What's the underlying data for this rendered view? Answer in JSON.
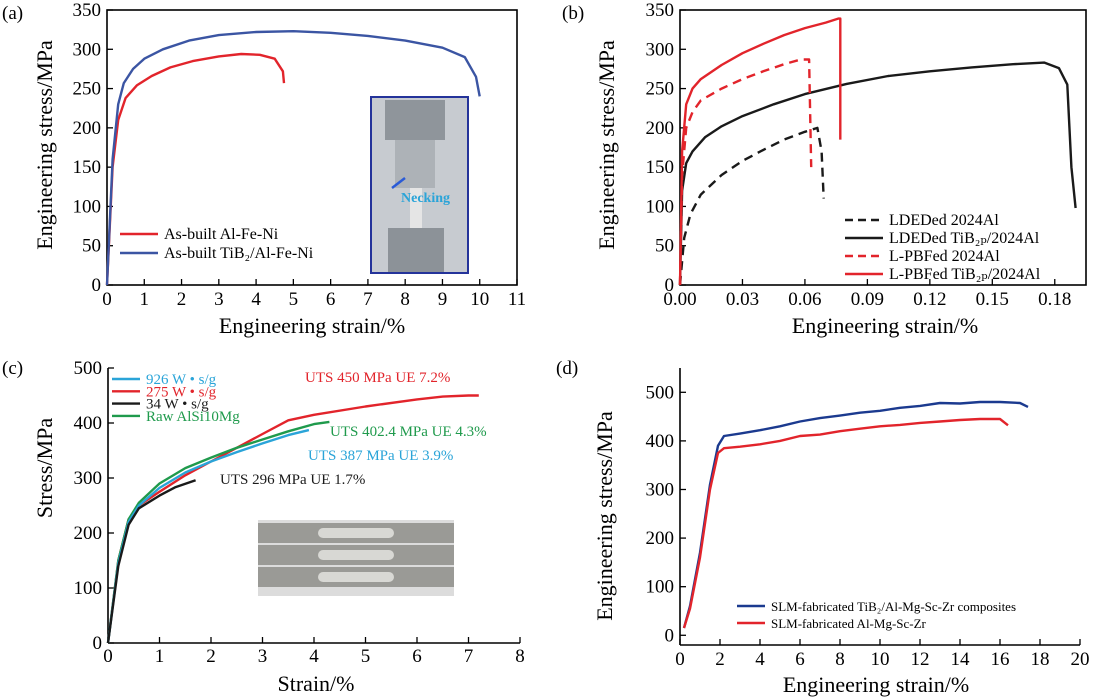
{
  "colors": {
    "red": "#e2242b",
    "blue": "#3b55a3",
    "black": "#1a1a1a",
    "green": "#1f9a4c",
    "cyan": "#2aa4d8",
    "dkblue": "#1b3a8f"
  },
  "chart_data": [
    {
      "type": "line",
      "tag": "(a)",
      "xlabel": "Engineering strain/%",
      "ylabel": "Engineering stress/MPa",
      "xlim": [
        0,
        11
      ],
      "ylim": [
        0,
        350
      ],
      "xticks": [
        "0",
        "1",
        "2",
        "3",
        "4",
        "5",
        "6",
        "7",
        "8",
        "9",
        "10",
        "11"
      ],
      "yticks": [
        "0",
        "50",
        "100",
        "150",
        "200",
        "250",
        "300",
        "350"
      ],
      "legend": [
        {
          "label": "As-built Al-Fe-Ni",
          "color": "red",
          "style": "solid"
        },
        {
          "label": "As-built TiB₂/Al-Fe-Ni",
          "color": "blue",
          "style": "solid"
        }
      ],
      "inset": {
        "annotation": "Necking"
      },
      "series": [
        {
          "name": "As-built Al-Fe-Ni",
          "color": "red",
          "style": "solid",
          "x": [
            0,
            0.15,
            0.3,
            0.5,
            0.8,
            1.2,
            1.7,
            2.3,
            3.0,
            3.6,
            4.1,
            4.5,
            4.72,
            4.75
          ],
          "y": [
            0,
            150,
            210,
            238,
            254,
            266,
            277,
            285,
            291,
            294,
            293,
            288,
            272,
            257
          ]
        },
        {
          "name": "As-built TiB₂/Al-Fe-Ni",
          "color": "blue",
          "style": "solid",
          "x": [
            0,
            0.15,
            0.3,
            0.45,
            0.7,
            1.0,
            1.5,
            2.2,
            3.0,
            4.0,
            5.0,
            6.0,
            7.0,
            8.0,
            9.0,
            9.6,
            9.9,
            10.0
          ],
          "y": [
            0,
            160,
            230,
            257,
            275,
            288,
            300,
            311,
            318,
            322,
            323,
            321,
            317,
            311,
            302,
            290,
            265,
            240
          ]
        }
      ]
    },
    {
      "type": "line",
      "tag": "(b)",
      "xlabel": "Engineering strain/%",
      "ylabel": "Engineering stress/MPa",
      "xlim": [
        0,
        0.195
      ],
      "ylim": [
        0,
        350
      ],
      "xticks": [
        "0.00",
        "0.03",
        "0.06",
        "0.09",
        "0.12",
        "0.15",
        "0.18"
      ],
      "yticks": [
        "0",
        "50",
        "100",
        "150",
        "200",
        "250",
        "300",
        "350"
      ],
      "legend": [
        {
          "label": "LDEDed 2024Al",
          "color": "black",
          "style": "dashed"
        },
        {
          "label": "LDEDed TiB₂ₚ/2024Al",
          "color": "black",
          "style": "solid"
        },
        {
          "label": "L-PBFed 2024Al",
          "color": "red",
          "style": "dashed"
        },
        {
          "label": "L-PBFed TiB₂ₚ/2024Al",
          "color": "red",
          "style": "solid"
        }
      ],
      "series": [
        {
          "name": "LDEDed 2024Al",
          "color": "black",
          "style": "dashed",
          "x": [
            0,
            0.002,
            0.005,
            0.01,
            0.02,
            0.03,
            0.04,
            0.05,
            0.06,
            0.066,
            0.068,
            0.069
          ],
          "y": [
            0,
            60,
            90,
            115,
            140,
            158,
            172,
            185,
            195,
            200,
            170,
            110
          ]
        },
        {
          "name": "LDEDed TiB₂ₚ/2024Al",
          "color": "black",
          "style": "solid",
          "x": [
            0,
            0.001,
            0.003,
            0.006,
            0.012,
            0.02,
            0.03,
            0.045,
            0.06,
            0.08,
            0.1,
            0.12,
            0.14,
            0.16,
            0.175,
            0.182,
            0.186,
            0.188,
            0.19
          ],
          "y": [
            0,
            120,
            155,
            170,
            188,
            202,
            215,
            230,
            243,
            256,
            266,
            272,
            277,
            281,
            283,
            276,
            255,
            150,
            98
          ]
        },
        {
          "name": "L-PBFed 2024Al",
          "color": "red",
          "style": "dashed",
          "x": [
            0,
            0.001,
            0.003,
            0.006,
            0.01,
            0.02,
            0.03,
            0.04,
            0.05,
            0.058,
            0.062,
            0.063
          ],
          "y": [
            0,
            140,
            200,
            220,
            235,
            250,
            262,
            272,
            281,
            287,
            287,
            150
          ]
        },
        {
          "name": "L-PBFed TiB₂ₚ/2024Al",
          "color": "red",
          "style": "solid",
          "x": [
            0,
            0.001,
            0.003,
            0.006,
            0.01,
            0.02,
            0.03,
            0.04,
            0.05,
            0.06,
            0.07,
            0.076,
            0.077,
            0.077
          ],
          "y": [
            0,
            170,
            230,
            250,
            262,
            280,
            295,
            307,
            318,
            327,
            334,
            339,
            339,
            185
          ]
        }
      ]
    },
    {
      "type": "line",
      "tag": "(c)",
      "xlabel": "Strain/%",
      "ylabel": "Stress/MPa",
      "xlim": [
        0,
        8
      ],
      "ylim": [
        0,
        500
      ],
      "xticks": [
        "0",
        "1",
        "2",
        "3",
        "4",
        "5",
        "6",
        "7",
        "8"
      ],
      "yticks": [
        "0",
        "100",
        "200",
        "300",
        "400",
        "500"
      ],
      "legend": [
        {
          "label": "926 W • s/g",
          "color": "cyan",
          "style": "solid"
        },
        {
          "label": "275 W • s/g",
          "color": "red",
          "style": "solid"
        },
        {
          "label": "34 W • s/g",
          "color": "black",
          "style": "solid"
        },
        {
          "label": "Raw AlSi10Mg",
          "color": "green",
          "style": "solid"
        }
      ],
      "annotations": [
        {
          "text": "UTS 450 MPa UE 7.2%",
          "color": "red"
        },
        {
          "text": "UTS 402.4 MPa UE 4.3%",
          "color": "green"
        },
        {
          "text": "UTS 387 MPa UE 3.9%",
          "color": "cyan"
        },
        {
          "text": "UTS 296 MPa UE 1.7%",
          "color": "black"
        }
      ],
      "series": [
        {
          "name": "275 W • s/g",
          "color": "red",
          "style": "solid",
          "x": [
            0,
            0.2,
            0.4,
            0.6,
            1.0,
            1.5,
            2.0,
            2.5,
            3.0,
            3.5,
            4.0,
            5.0,
            6.0,
            6.5,
            7.0,
            7.2
          ],
          "y": [
            0,
            150,
            225,
            250,
            275,
            305,
            330,
            355,
            380,
            405,
            415,
            430,
            443,
            448,
            450,
            450
          ]
        },
        {
          "name": "Raw AlSi10Mg",
          "color": "green",
          "style": "solid",
          "x": [
            0,
            0.2,
            0.4,
            0.6,
            1.0,
            1.5,
            2.0,
            2.5,
            3.0,
            3.5,
            4.0,
            4.3
          ],
          "y": [
            0,
            150,
            225,
            255,
            290,
            318,
            337,
            355,
            370,
            385,
            398,
            402
          ]
        },
        {
          "name": "926 W • s/g",
          "color": "cyan",
          "style": "solid",
          "x": [
            0,
            0.2,
            0.4,
            0.6,
            1.0,
            1.5,
            2.0,
            2.5,
            3.0,
            3.5,
            3.9
          ],
          "y": [
            0,
            145,
            220,
            250,
            282,
            310,
            330,
            347,
            363,
            378,
            387
          ]
        },
        {
          "name": "34 W • s/g",
          "color": "black",
          "style": "solid",
          "x": [
            0,
            0.2,
            0.4,
            0.6,
            1.0,
            1.3,
            1.7
          ],
          "y": [
            0,
            140,
            215,
            245,
            268,
            283,
            296
          ]
        }
      ]
    },
    {
      "type": "line",
      "tag": "(d)",
      "xlabel": "Engineering strain/%",
      "ylabel": "Engineering stress/MPa",
      "xlim": [
        0,
        20
      ],
      "ylim": [
        -20,
        550
      ],
      "xticks": [
        "0",
        "2",
        "4",
        "6",
        "8",
        "10",
        "12",
        "14",
        "16",
        "18",
        "20"
      ],
      "yticks": [
        "0",
        "100",
        "200",
        "300",
        "400",
        "500"
      ],
      "legend": [
        {
          "label": "SLM-fabricated TiB₂/Al-Mg-Sc-Zr composites",
          "color": "dkblue",
          "style": "solid"
        },
        {
          "label": "SLM-fabricated Al-Mg-Sc-Zr",
          "color": "red",
          "style": "solid"
        }
      ],
      "series": [
        {
          "name": "SLM-fabricated TiB₂/Al-Mg-Sc-Zr composites",
          "color": "dkblue",
          "style": "solid",
          "x": [
            0.2,
            0.5,
            1.0,
            1.5,
            1.9,
            2.2,
            3,
            4,
            5,
            6,
            7,
            8,
            9,
            10,
            11,
            12,
            13,
            14,
            15,
            16,
            17,
            17.4
          ],
          "y": [
            15,
            60,
            170,
            310,
            390,
            410,
            415,
            422,
            430,
            440,
            447,
            452,
            458,
            462,
            468,
            472,
            478,
            477,
            480,
            480,
            478,
            470
          ]
        },
        {
          "name": "SLM-fabricated Al-Mg-Sc-Zr",
          "color": "red",
          "style": "solid",
          "x": [
            0.2,
            0.5,
            1.0,
            1.5,
            1.9,
            2.2,
            3,
            4,
            5,
            6,
            7,
            8,
            9,
            10,
            11,
            12,
            13,
            14,
            15,
            16,
            16.4
          ],
          "y": [
            15,
            55,
            160,
            300,
            375,
            385,
            388,
            393,
            400,
            410,
            413,
            420,
            425,
            430,
            433,
            437,
            440,
            443,
            445,
            445,
            432
          ]
        }
      ]
    }
  ]
}
